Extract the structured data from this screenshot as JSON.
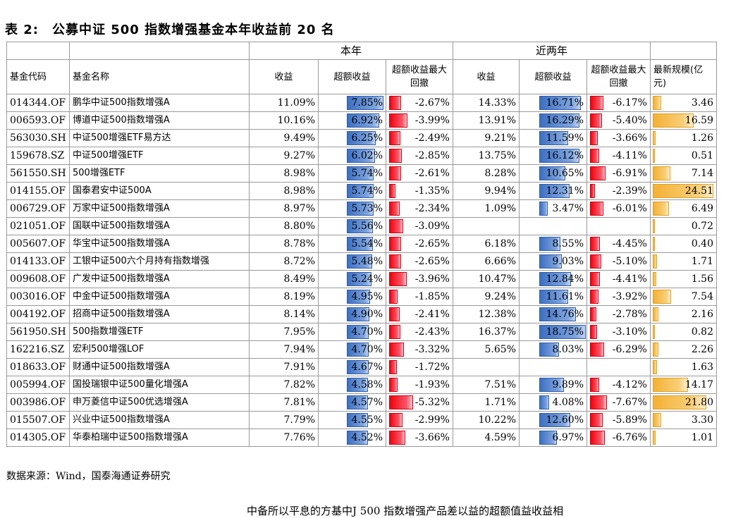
{
  "title": "表 2:　公募中证 500 指数增强基金本年收益前 20 名",
  "groups": {
    "year": "本年",
    "two_year": "近两年"
  },
  "headers": {
    "code": "基金代码",
    "name": "基金名称",
    "ret": "收益",
    "excess": "超额收益",
    "mdd": "超额收益最大回撤",
    "ret2": "收益",
    "excess2": "超额收益",
    "mdd2": "超额收益最大回撤",
    "size": "最新规模(亿元)"
  },
  "rows": [
    {
      "code": "014344.OF",
      "name": "鹏华中证500指数增强A",
      "ret": "11.09%",
      "excess": "7.85%",
      "mdd": "-2.67%",
      "ret2": "14.33%",
      "excess2": "16.71%",
      "mdd2": "-6.17%",
      "size": "3.46"
    },
    {
      "code": "006593.OF",
      "name": "博道中证500指数增强A",
      "ret": "10.16%",
      "excess": "6.92%",
      "mdd": "-3.99%",
      "ret2": "13.91%",
      "excess2": "16.29%",
      "mdd2": "-5.40%",
      "size": "16.59"
    },
    {
      "code": "563030.SH",
      "name": "中证500增强ETF易方达",
      "ret": "9.49%",
      "excess": "6.25%",
      "mdd": "-2.49%",
      "ret2": "9.21%",
      "excess2": "11.59%",
      "mdd2": "-3.66%",
      "size": "1.26"
    },
    {
      "code": "159678.SZ",
      "name": "中证500增强ETF",
      "ret": "9.27%",
      "excess": "6.02%",
      "mdd": "-2.85%",
      "ret2": "13.75%",
      "excess2": "16.12%",
      "mdd2": "-4.11%",
      "size": "0.51"
    },
    {
      "code": "561550.SH",
      "name": "500增强ETF",
      "ret": "8.98%",
      "excess": "5.74%",
      "mdd": "-2.61%",
      "ret2": "8.28%",
      "excess2": "10.65%",
      "mdd2": "-6.91%",
      "size": "7.14"
    },
    {
      "code": "014155.OF",
      "name": "国泰君安中证500A",
      "ret": "8.98%",
      "excess": "5.74%",
      "mdd": "-1.35%",
      "ret2": "9.94%",
      "excess2": "12.31%",
      "mdd2": "-2.39%",
      "size": "24.51"
    },
    {
      "code": "006729.OF",
      "name": "万家中证500指数增强A",
      "ret": "8.97%",
      "excess": "5.73%",
      "mdd": "-2.34%",
      "ret2": "1.09%",
      "excess2": "3.47%",
      "mdd2": "-6.01%",
      "size": "6.49"
    },
    {
      "code": "021051.OF",
      "name": "国联中证500指数增强A",
      "ret": "8.80%",
      "excess": "5.56%",
      "mdd": "-3.09%",
      "ret2": "",
      "excess2": "",
      "mdd2": "",
      "size": "0.72"
    },
    {
      "code": "005607.OF",
      "name": "华宝中证500指数增强A",
      "ret": "8.78%",
      "excess": "5.54%",
      "mdd": "-2.65%",
      "ret2": "6.18%",
      "excess2": "8.55%",
      "mdd2": "-4.45%",
      "size": "0.40"
    },
    {
      "code": "014133.OF",
      "name": "工银中证500六个月持有指数增强",
      "ret": "8.72%",
      "excess": "5.48%",
      "mdd": "-2.65%",
      "ret2": "6.66%",
      "excess2": "9.03%",
      "mdd2": "-5.10%",
      "size": "1.71"
    },
    {
      "code": "009608.OF",
      "name": "广发中证500指数增强A",
      "ret": "8.49%",
      "excess": "5.24%",
      "mdd": "-3.96%",
      "ret2": "10.47%",
      "excess2": "12.84%",
      "mdd2": "-4.41%",
      "size": "1.56"
    },
    {
      "code": "003016.OF",
      "name": "中金中证500指数增强A",
      "ret": "8.19%",
      "excess": "4.95%",
      "mdd": "-1.85%",
      "ret2": "9.24%",
      "excess2": "11.61%",
      "mdd2": "-3.92%",
      "size": "7.54"
    },
    {
      "code": "004192.OF",
      "name": "招商中证500指数增强A",
      "ret": "8.14%",
      "excess": "4.90%",
      "mdd": "-2.41%",
      "ret2": "12.38%",
      "excess2": "14.76%",
      "mdd2": "-2.78%",
      "size": "2.16"
    },
    {
      "code": "561950.SH",
      "name": "500指数增强ETF",
      "ret": "7.95%",
      "excess": "4.70%",
      "mdd": "-2.43%",
      "ret2": "16.37%",
      "excess2": "18.75%",
      "mdd2": "-3.10%",
      "size": "0.82"
    },
    {
      "code": "162216.SZ",
      "name": "宏利500增强LOF",
      "ret": "7.94%",
      "excess": "4.70%",
      "mdd": "-3.32%",
      "ret2": "5.65%",
      "excess2": "8.03%",
      "mdd2": "-6.29%",
      "size": "2.26"
    },
    {
      "code": "018633.OF",
      "name": "财通中证500指数增强A",
      "ret": "7.91%",
      "excess": "4.67%",
      "mdd": "-1.72%",
      "ret2": "",
      "excess2": "",
      "mdd2": "",
      "size": "1.63"
    },
    {
      "code": "005994.OF",
      "name": "国投瑞银中证500量化增强A",
      "ret": "7.82%",
      "excess": "4.58%",
      "mdd": "-1.93%",
      "ret2": "7.51%",
      "excess2": "9.89%",
      "mdd2": "-4.12%",
      "size": "14.17"
    },
    {
      "code": "003986.OF",
      "name": "申万菱信中证500优选增强A",
      "ret": "7.81%",
      "excess": "4.57%",
      "mdd": "-5.32%",
      "ret2": "1.71%",
      "excess2": "4.08%",
      "mdd2": "-7.67%",
      "size": "21.80"
    },
    {
      "code": "015507.OF",
      "name": "兴业中证500指数增强A",
      "ret": "7.79%",
      "excess": "4.55%",
      "mdd": "-2.99%",
      "ret2": "10.22%",
      "excess2": "12.60%",
      "mdd2": "-5.89%",
      "size": "3.30"
    },
    {
      "code": "014305.OF",
      "name": "华泰柏瑞中证500指数增强A",
      "ret": "7.76%",
      "excess": "4.52%",
      "mdd": "-3.66%",
      "ret2": "4.59%",
      "excess2": "6.97%",
      "mdd2": "-6.76%",
      "size": "1.01"
    }
  ],
  "source": "数据来源：Wind，国泰海通证券研究",
  "footer_fragment": "中备所以平息的方基中J   500 指数增强产品差以益的超额值益收益相"
}
